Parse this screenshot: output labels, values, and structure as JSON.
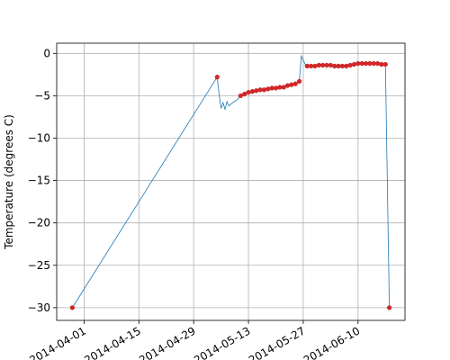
{
  "chart_data": {
    "type": "line",
    "title": "",
    "xlabel": "",
    "ylabel": "Temperature (degrees C)",
    "xlim": [
      "2014-03-25",
      "2014-06-22"
    ],
    "ylim": [
      -31.5,
      1.2
    ],
    "grid": true,
    "x_ticks": [
      "2014-04-01",
      "2014-04-15",
      "2014-04-29",
      "2014-05-13",
      "2014-05-27",
      "2014-06-10"
    ],
    "x_tick_labels": [
      "2014-04-01",
      "2014-04-15",
      "2014-04-29",
      "2014-05-13",
      "2014-05-27",
      "2014-06-10"
    ],
    "y_ticks": [
      0,
      -5,
      -10,
      -15,
      -20,
      -25,
      -30
    ],
    "y_tick_labels": [
      "0",
      "−5",
      "−10",
      "−15",
      "−20",
      "−25",
      "−30"
    ],
    "series": [
      {
        "style": "line",
        "color": "#1f77b4",
        "x": [
          "2014-03-29",
          "2014-05-05",
          "2014-05-05 12:00",
          "2014-05-06",
          "2014-05-06 12:00",
          "2014-05-07",
          "2014-05-07 12:00",
          "2014-05-08",
          "2014-05-09",
          "2014-05-10",
          "2014-05-11",
          "2014-05-12",
          "2014-05-13",
          "2014-05-14",
          "2014-05-15",
          "2014-05-16",
          "2014-05-17",
          "2014-05-18",
          "2014-05-19",
          "2014-05-20",
          "2014-05-21",
          "2014-05-22",
          "2014-05-23",
          "2014-05-24",
          "2014-05-25",
          "2014-05-26",
          "2014-05-26 12:00",
          "2014-05-27",
          "2014-05-27 12:00",
          "2014-05-28",
          "2014-05-29",
          "2014-05-30",
          "2014-06-01",
          "2014-06-03",
          "2014-06-05",
          "2014-06-07",
          "2014-06-09",
          "2014-06-11",
          "2014-06-13",
          "2014-06-15",
          "2014-06-17",
          "2014-06-18"
        ],
        "y": [
          -30.0,
          -2.8,
          -4.8,
          -6.5,
          -5.8,
          -6.6,
          -5.7,
          -6.2,
          -5.8,
          -5.5,
          -5.0,
          -4.8,
          -4.6,
          -4.5,
          -4.4,
          -4.3,
          -4.3,
          -4.2,
          -4.1,
          -4.1,
          -4.0,
          -4.0,
          -3.8,
          -3.7,
          -3.6,
          -3.3,
          -0.3,
          -0.8,
          -1.3,
          -1.5,
          -1.5,
          -1.5,
          -1.4,
          -1.4,
          -1.5,
          -1.5,
          -1.3,
          -1.2,
          -1.2,
          -1.2,
          -1.3,
          -30.0
        ]
      },
      {
        "style": "scatter",
        "color": "#d62728",
        "x": [
          "2014-03-29",
          "2014-05-05",
          "2014-05-11",
          "2014-05-12",
          "2014-05-13",
          "2014-05-14",
          "2014-05-15",
          "2014-05-16",
          "2014-05-17",
          "2014-05-18",
          "2014-05-19",
          "2014-05-20",
          "2014-05-21",
          "2014-05-22",
          "2014-05-23",
          "2014-05-24",
          "2014-05-25",
          "2014-05-26",
          "2014-05-28",
          "2014-05-29",
          "2014-05-30",
          "2014-05-31",
          "2014-06-01",
          "2014-06-02",
          "2014-06-03",
          "2014-06-04",
          "2014-06-05",
          "2014-06-06",
          "2014-06-07",
          "2014-06-08",
          "2014-06-09",
          "2014-06-10",
          "2014-06-11",
          "2014-06-12",
          "2014-06-13",
          "2014-06-14",
          "2014-06-15",
          "2014-06-16",
          "2014-06-17",
          "2014-06-18"
        ],
        "y": [
          -30.0,
          -2.8,
          -5.0,
          -4.8,
          -4.6,
          -4.5,
          -4.4,
          -4.3,
          -4.3,
          -4.2,
          -4.1,
          -4.1,
          -4.0,
          -4.0,
          -3.8,
          -3.7,
          -3.6,
          -3.3,
          -1.5,
          -1.5,
          -1.5,
          -1.4,
          -1.4,
          -1.4,
          -1.4,
          -1.5,
          -1.5,
          -1.5,
          -1.5,
          -1.4,
          -1.3,
          -1.2,
          -1.2,
          -1.2,
          -1.2,
          -1.2,
          -1.2,
          -1.3,
          -1.3,
          -30.0
        ]
      }
    ]
  }
}
